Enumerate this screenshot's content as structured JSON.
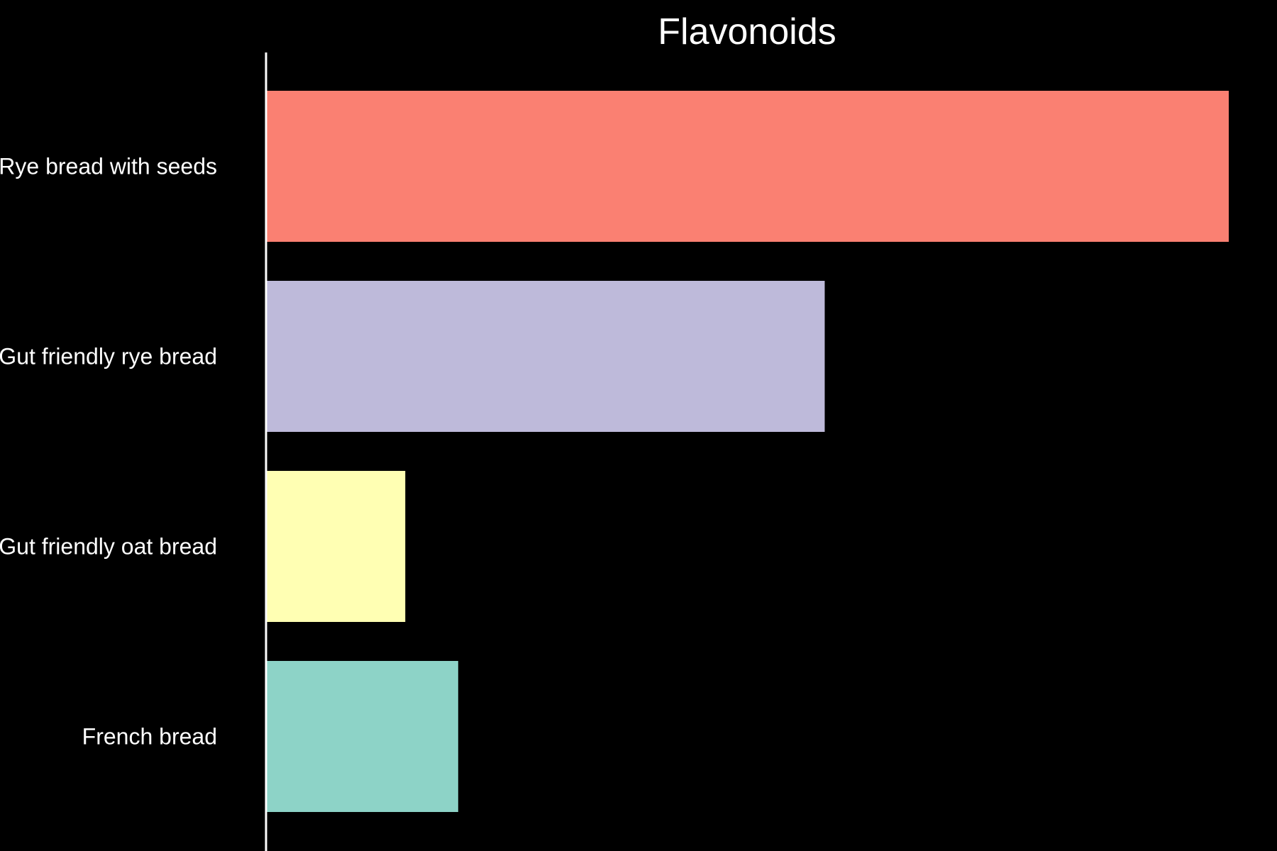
{
  "chart_data": {
    "type": "bar",
    "orientation": "horizontal",
    "title": "Flavonoids",
    "xlabel": "",
    "ylabel": "",
    "categories": [
      "Rye bread with seeds",
      "Gut friendly rye bread",
      "Gut friendly oat bread",
      "French bread"
    ],
    "values": [
      100,
      58,
      14.4,
      19.9
    ],
    "colors": [
      "#fa8072",
      "#bebada",
      "#ffffb3",
      "#8dd3c7"
    ],
    "xlim": [
      0,
      100
    ],
    "grid": false,
    "background": "#000000",
    "axis_color": "#ffffff"
  }
}
